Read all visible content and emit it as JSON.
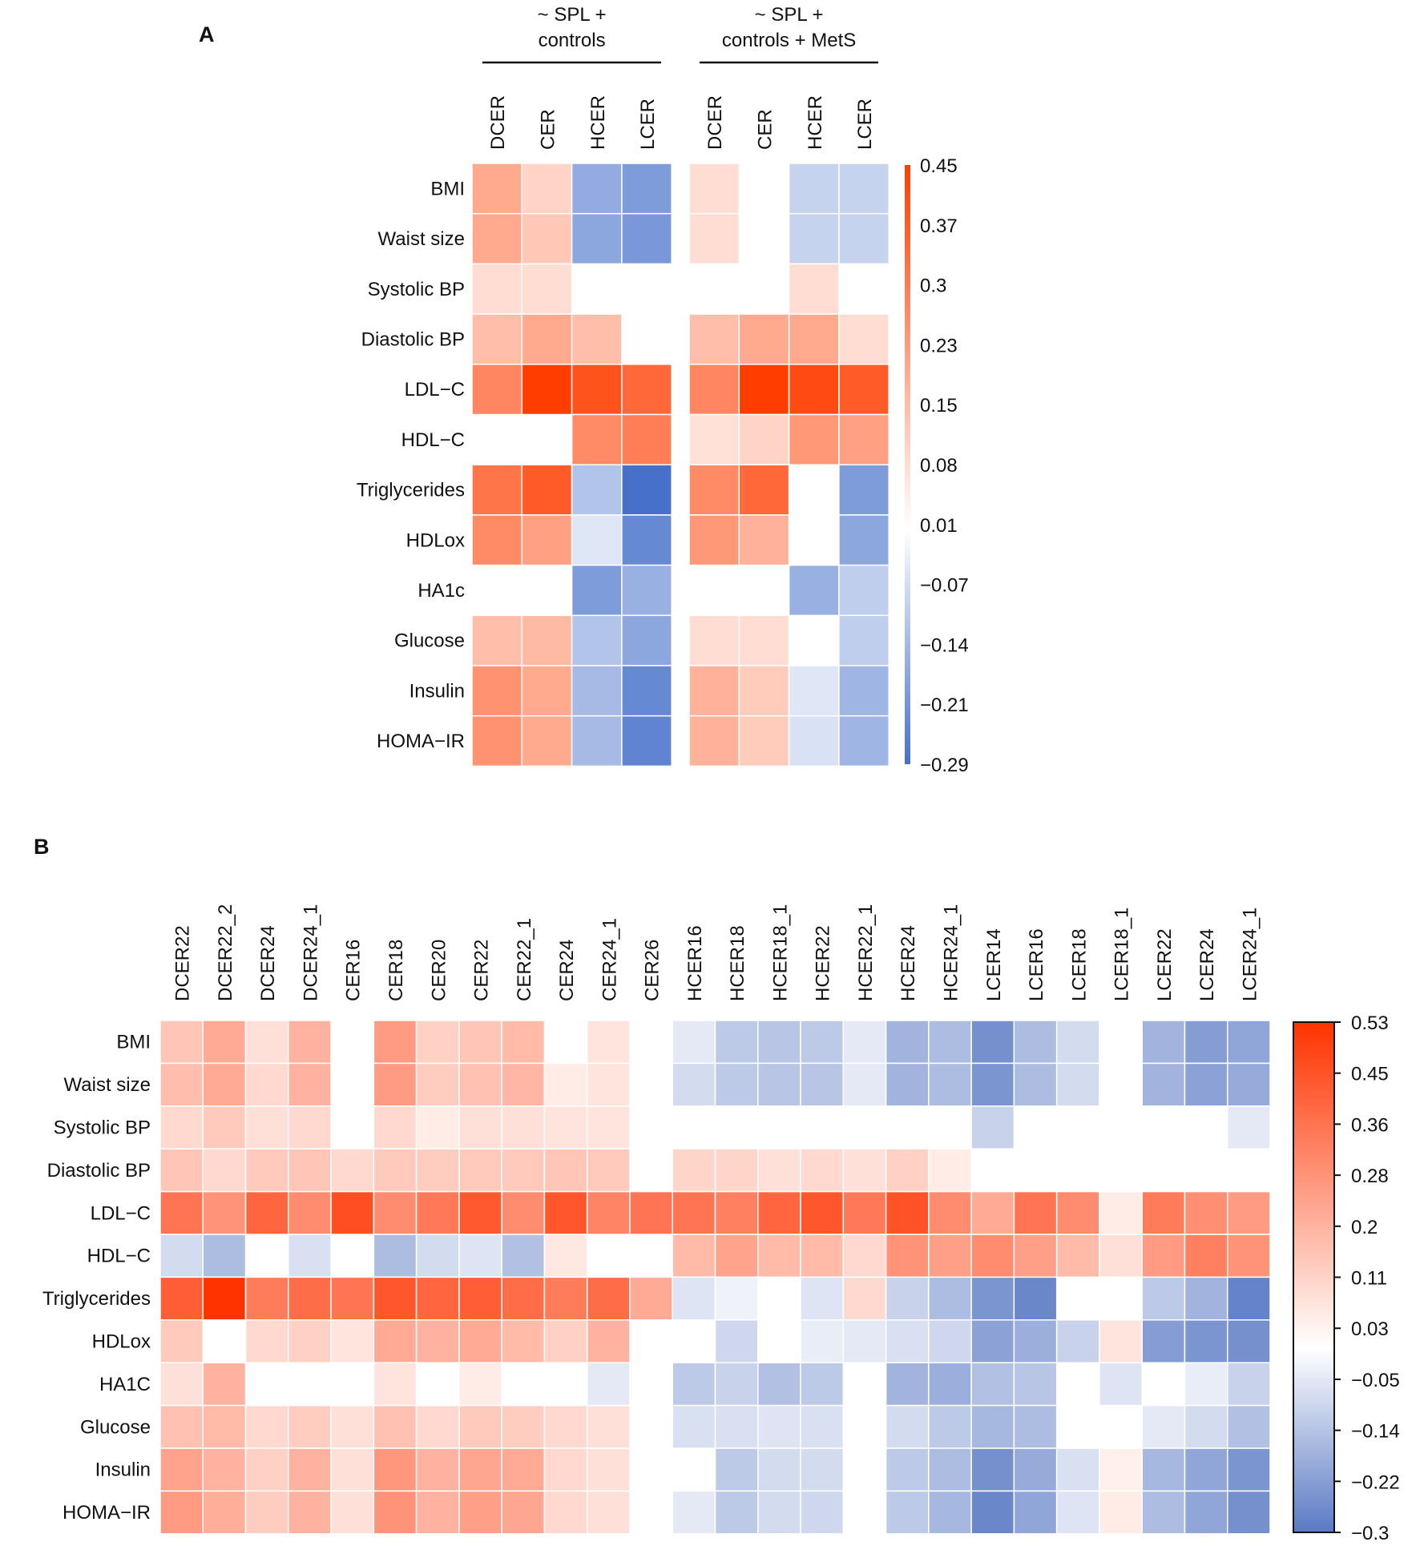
{
  "chart_data": [
    {
      "type": "heatmap",
      "panel_label": "A",
      "groups": [
        {
          "title_line1": "~ SPL +",
          "title_line2": "controls",
          "columns": [
            "DCER",
            "CER",
            "HCER",
            "LCER"
          ]
        },
        {
          "title_line1": "~ SPL +",
          "title_line2": "controls + MetS",
          "columns": [
            "DCER",
            "CER",
            "HCER",
            "LCER"
          ]
        }
      ],
      "rows": [
        "BMI",
        "Waist size",
        "Systolic BP",
        "Diastolic BP",
        "LDL−C",
        "HDL−C",
        "Triglycerides",
        "HDLox",
        "HA1c",
        "Glucose",
        "Insulin",
        "HOMA−IR"
      ],
      "values": [
        [
          0.2,
          0.1,
          -0.17,
          -0.2,
          0.08,
          null,
          -0.09,
          -0.09
        ],
        [
          0.2,
          0.13,
          -0.18,
          -0.21,
          0.08,
          null,
          -0.09,
          -0.09
        ],
        [
          0.08,
          0.08,
          null,
          null,
          null,
          null,
          0.08,
          null
        ],
        [
          0.15,
          0.2,
          0.15,
          null,
          0.15,
          0.2,
          0.2,
          0.08
        ],
        [
          0.28,
          0.45,
          0.4,
          0.35,
          0.28,
          0.45,
          0.42,
          0.38
        ],
        [
          null,
          null,
          0.27,
          0.3,
          0.07,
          0.1,
          0.24,
          0.22
        ],
        [
          0.32,
          0.38,
          -0.12,
          -0.29,
          0.27,
          0.35,
          null,
          -0.2
        ],
        [
          0.27,
          0.22,
          -0.05,
          -0.24,
          0.24,
          0.18,
          null,
          -0.18
        ],
        [
          null,
          null,
          -0.2,
          -0.16,
          null,
          null,
          -0.16,
          -0.1
        ],
        [
          0.15,
          0.16,
          -0.12,
          -0.18,
          0.08,
          0.08,
          null,
          -0.1
        ],
        [
          0.25,
          0.2,
          -0.14,
          -0.24,
          0.18,
          0.12,
          -0.05,
          -0.15
        ],
        [
          0.25,
          0.2,
          -0.14,
          -0.25,
          0.18,
          0.12,
          -0.06,
          -0.15
        ]
      ],
      "colorbar": {
        "min": -0.29,
        "max": 0.45,
        "ticks": [
          "0.45",
          "0.37",
          "0.3",
          "0.23",
          "0.15",
          "0.08",
          "0.01",
          "−0.07",
          "−0.14",
          "−0.21",
          "−0.29"
        ]
      },
      "colors": {
        "high": "#FF3D00",
        "mid": "#FFFFFF",
        "low": "#4670CA"
      }
    },
    {
      "type": "heatmap",
      "panel_label": "B",
      "columns": [
        "DCER22",
        "DCER22_2",
        "DCER24",
        "DCER24_1",
        "CER16",
        "CER18",
        "CER20",
        "CER22",
        "CER22_1",
        "CER24",
        "CER24_1",
        "CER26",
        "HCER16",
        "HCER18",
        "HCER18_1",
        "HCER22",
        "HCER22_1",
        "HCER24",
        "HCER24_1",
        "LCER14",
        "LCER16",
        "LCER18",
        "LCER18_1",
        "LCER22",
        "LCER24",
        "LCER24_1"
      ],
      "rows": [
        "BMI",
        "Waist size",
        "Systolic BP",
        "Diastolic BP",
        "LDL−C",
        "HDL−C",
        "Triglycerides",
        "HDLox",
        "HA1C",
        "Glucose",
        "Insulin",
        "HOMA−IR"
      ],
      "values": [
        [
          0.15,
          0.22,
          0.08,
          0.2,
          null,
          0.26,
          0.12,
          0.15,
          0.18,
          null,
          0.07,
          null,
          -0.05,
          -0.12,
          -0.13,
          -0.12,
          -0.05,
          -0.17,
          -0.15,
          -0.25,
          -0.15,
          -0.08,
          null,
          -0.17,
          -0.22,
          -0.2
        ],
        [
          0.17,
          0.22,
          0.1,
          0.2,
          null,
          0.26,
          0.13,
          0.16,
          0.19,
          0.05,
          0.07,
          null,
          -0.08,
          -0.12,
          -0.13,
          -0.13,
          -0.05,
          -0.17,
          -0.15,
          -0.24,
          -0.15,
          -0.08,
          null,
          -0.17,
          -0.21,
          -0.19
        ],
        [
          0.1,
          0.14,
          0.08,
          0.1,
          null,
          0.1,
          0.05,
          0.08,
          0.08,
          0.07,
          0.07,
          null,
          null,
          null,
          null,
          null,
          null,
          null,
          null,
          -0.1,
          null,
          null,
          null,
          null,
          null,
          -0.05
        ],
        [
          0.15,
          0.1,
          0.14,
          0.15,
          0.1,
          0.14,
          0.13,
          0.14,
          0.14,
          0.15,
          0.14,
          null,
          0.11,
          0.11,
          0.08,
          0.1,
          0.08,
          0.12,
          0.05,
          null,
          null,
          null,
          null,
          null,
          null,
          null
        ],
        [
          0.36,
          0.28,
          0.4,
          0.3,
          0.46,
          0.3,
          0.35,
          0.43,
          0.3,
          0.44,
          0.32,
          0.36,
          0.36,
          0.33,
          0.4,
          0.44,
          0.35,
          0.45,
          0.3,
          0.22,
          0.36,
          0.3,
          0.05,
          0.34,
          0.29,
          0.26
        ],
        [
          -0.08,
          -0.15,
          null,
          -0.07,
          null,
          -0.15,
          -0.08,
          -0.06,
          -0.14,
          0.06,
          null,
          null,
          0.18,
          0.24,
          0.18,
          0.18,
          0.1,
          0.28,
          0.25,
          0.3,
          0.25,
          0.18,
          0.08,
          0.26,
          0.33,
          0.28
        ],
        [
          0.42,
          0.53,
          0.34,
          0.38,
          0.36,
          0.44,
          0.4,
          0.42,
          0.38,
          0.34,
          0.38,
          0.22,
          -0.06,
          -0.03,
          null,
          -0.06,
          0.1,
          -0.1,
          -0.15,
          -0.24,
          -0.27,
          null,
          null,
          -0.12,
          -0.17,
          -0.28
        ],
        [
          0.14,
          null,
          0.1,
          0.12,
          0.07,
          0.22,
          0.2,
          0.22,
          0.18,
          0.12,
          0.2,
          null,
          null,
          -0.09,
          null,
          -0.04,
          -0.05,
          -0.07,
          -0.09,
          -0.21,
          -0.18,
          -0.1,
          0.07,
          -0.22,
          -0.24,
          -0.25
        ],
        [
          0.08,
          0.2,
          null,
          null,
          null,
          0.07,
          null,
          0.05,
          null,
          null,
          -0.05,
          null,
          -0.12,
          -0.1,
          -0.14,
          -0.12,
          null,
          -0.17,
          -0.18,
          -0.14,
          -0.13,
          null,
          -0.06,
          null,
          -0.04,
          -0.1
        ],
        [
          0.16,
          0.18,
          0.1,
          0.13,
          0.08,
          0.16,
          0.1,
          0.14,
          0.13,
          0.1,
          0.08,
          null,
          -0.07,
          -0.07,
          -0.06,
          -0.07,
          null,
          -0.08,
          -0.12,
          -0.16,
          -0.15,
          null,
          null,
          -0.05,
          -0.08,
          -0.14
        ],
        [
          0.24,
          0.2,
          0.12,
          0.2,
          0.08,
          0.27,
          0.2,
          0.23,
          0.22,
          0.1,
          0.08,
          null,
          null,
          -0.12,
          -0.08,
          -0.08,
          null,
          -0.12,
          -0.15,
          -0.25,
          -0.19,
          -0.07,
          0.04,
          -0.16,
          -0.2,
          -0.24
        ],
        [
          0.26,
          0.21,
          0.13,
          0.2,
          0.08,
          0.28,
          0.2,
          0.25,
          0.23,
          0.1,
          0.08,
          null,
          -0.05,
          -0.12,
          -0.08,
          -0.09,
          null,
          -0.12,
          -0.16,
          -0.27,
          -0.2,
          -0.06,
          0.05,
          -0.15,
          -0.2,
          -0.25
        ]
      ],
      "colorbar": {
        "min": -0.3,
        "max": 0.53,
        "ticks": [
          "0.53",
          "0.45",
          "0.36",
          "0.28",
          "0.2",
          "0.11",
          "0.03",
          "−0.05",
          "−0.14",
          "−0.22",
          "−0.3"
        ]
      },
      "colors": {
        "high": "#FF3300",
        "mid": "#FFFFFF",
        "low": "#5A7AC4"
      }
    }
  ]
}
